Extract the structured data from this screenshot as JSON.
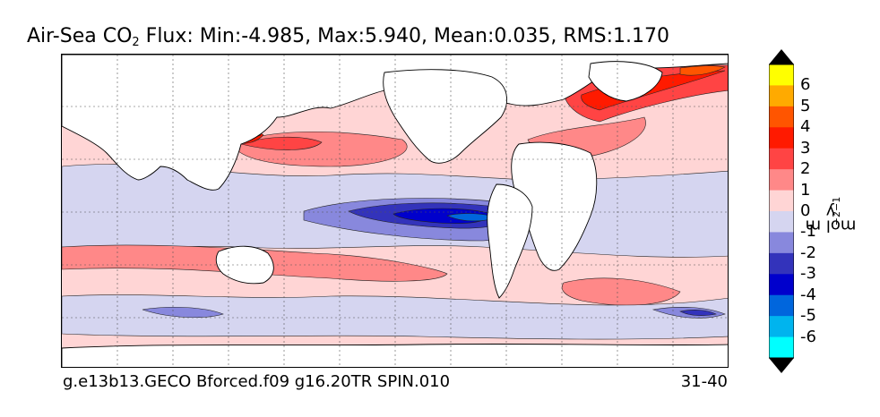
{
  "title": {
    "prefix": "Air-Sea CO",
    "subscript": "2",
    "stats": " Flux: Min:-4.985, Max:5.940, Mean:0.035, RMS:1.170"
  },
  "footer": {
    "case_name": "g.e13b13.GECO Bforced.f09 g16.20TR SPIN.010",
    "years": "31-40"
  },
  "colorbar": {
    "labels": [
      "6",
      "5",
      "4",
      "3",
      "2",
      "1",
      "0",
      "-1",
      "-2",
      "-3",
      "-4",
      "-5",
      "-6"
    ],
    "colors": [
      "#ffff00",
      "#ffaa00",
      "#ff5500",
      "#ff1a00",
      "#ff4444",
      "#ff8888",
      "#ffd5d5",
      "#d5d5f0",
      "#8888dd",
      "#3333bb",
      "#0000cc",
      "#0066dd",
      "#00b4ee",
      "#00ffff"
    ],
    "top_arrow_color": "#000000",
    "bottom_arrow_color": "#000000",
    "units_main": "mol m",
    "units_exp1": "−2",
    "units_mid": " y",
    "units_exp2": "−1"
  }
}
